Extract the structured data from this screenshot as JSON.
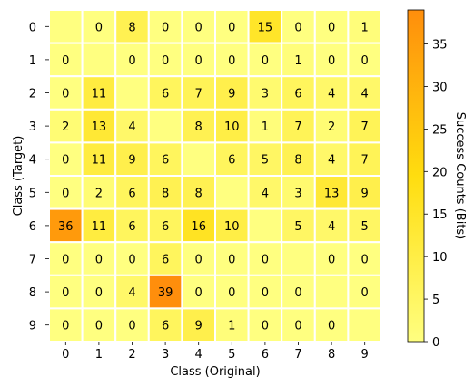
{
  "chart_data": {
    "type": "heatmap",
    "xlabel": "Class (Original)",
    "ylabel": "Class (Target)",
    "colorbar_label": "Success Counts (Bits)",
    "x_categories": [
      "0",
      "1",
      "2",
      "3",
      "4",
      "5",
      "6",
      "7",
      "8",
      "9"
    ],
    "y_categories": [
      "0",
      "1",
      "2",
      "3",
      "4",
      "5",
      "6",
      "7",
      "8",
      "9"
    ],
    "values": [
      [
        null,
        0,
        8,
        0,
        0,
        0,
        15,
        0,
        0,
        1
      ],
      [
        0,
        null,
        0,
        0,
        0,
        0,
        0,
        1,
        0,
        0
      ],
      [
        0,
        11,
        null,
        6,
        7,
        9,
        3,
        6,
        4,
        4
      ],
      [
        2,
        13,
        4,
        null,
        8,
        10,
        1,
        7,
        2,
        7
      ],
      [
        0,
        11,
        9,
        6,
        null,
        6,
        5,
        8,
        4,
        7
      ],
      [
        0,
        2,
        6,
        8,
        8,
        null,
        4,
        3,
        13,
        9
      ],
      [
        36,
        11,
        6,
        6,
        16,
        10,
        null,
        5,
        4,
        5
      ],
      [
        0,
        0,
        0,
        6,
        0,
        0,
        0,
        null,
        0,
        0
      ],
      [
        0,
        0,
        4,
        39,
        0,
        0,
        0,
        0,
        null,
        0
      ],
      [
        0,
        0,
        0,
        6,
        9,
        1,
        0,
        0,
        0,
        null
      ]
    ],
    "color_range": [
      0,
      39
    ],
    "colorbar_ticks": [
      0,
      5,
      10,
      15,
      20,
      25,
      30,
      35
    ],
    "colormap": [
      "#ffff80",
      "#ffdd0f",
      "#ff8e0c"
    ],
    "diagonal_color": "#ffff80",
    "cell_border_color": "#ffffff"
  }
}
